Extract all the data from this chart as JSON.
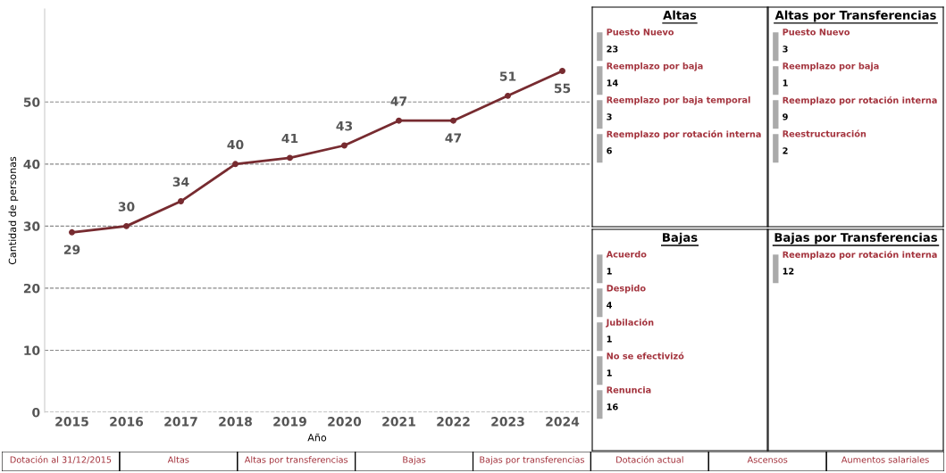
{
  "chart_data": [
    {
      "type": "line",
      "xlabel": "Año",
      "ylabel": "Cantidad de personas",
      "categories": [
        "2015",
        "2016",
        "2017",
        "2018",
        "2019",
        "2020",
        "2021",
        "2022",
        "2023",
        "2024"
      ],
      "series": [
        {
          "color": "#772b30",
          "values": [
            29,
            30,
            34,
            40,
            41,
            43,
            47,
            47,
            51,
            55
          ]
        }
      ],
      "ylim": [
        0,
        65
      ],
      "yticks": [
        0,
        10,
        20,
        30,
        40,
        50
      ],
      "grid": "y",
      "data_labels": true,
      "marker": "circle",
      "line_style": "solid",
      "legend": false
    },
    {
      "type": "other",
      "title": "Altas",
      "annotations": [
        "Puesto Nuevo",
        "23",
        "Reemplazo por baja",
        "14",
        "Reemplazo por baja temporal",
        "3",
        "Reemplazo por rotación interna",
        "6"
      ]
    },
    {
      "type": "other",
      "title": "Altas por Transferencias",
      "annotations": [
        "Puesto Nuevo",
        "3",
        "Reemplazo por baja",
        "1",
        "Reemplazo por rotación interna",
        "9",
        "Reestructuración",
        "2"
      ]
    },
    {
      "type": "other",
      "title": "Bajas",
      "annotations": [
        "Acuerdo",
        "1",
        "Despido",
        "4",
        "Jubilación",
        "1",
        "No se efectivizó",
        "1",
        "Renuncia",
        "16"
      ]
    },
    {
      "type": "other",
      "title": "Bajas por Transferencias",
      "annotations": [
        "Reemplazo por rotación interna",
        "12"
      ]
    },
    {
      "type": "other",
      "annotations": [
        "Dotación al 31/12/2015",
        "Altas",
        "Altas por transferencias",
        "Bajas",
        "Bajas por transferencias",
        "Dotación actual",
        "Ascensos",
        "Aumentos salariales"
      ]
    }
  ]
}
